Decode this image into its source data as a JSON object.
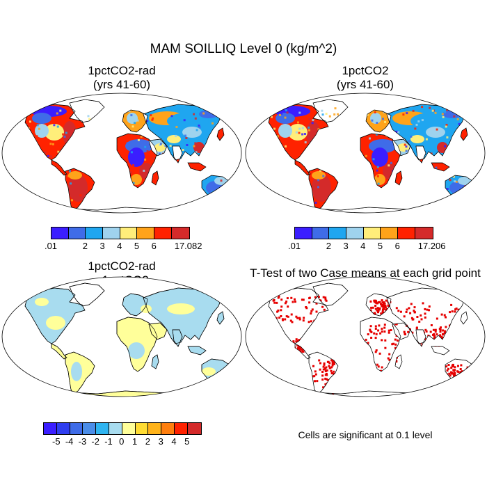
{
  "title": "MAM SOILLIQ Level 0 (kg/m^2)",
  "panels": [
    {
      "id": "a",
      "title_line1": "1pctCO2-rad",
      "title_line2": "(yrs 41-60)"
    },
    {
      "id": "b",
      "title_line1": "1pctCO2",
      "title_line2": "(yrs 41-60)"
    },
    {
      "id": "c",
      "title_line1": "1pctCO2-rad",
      "title_line2": "- 1pctCO2"
    },
    {
      "id": "d",
      "title_line1": "T-Test of two Case means at each grid point",
      "title_line2": ""
    }
  ],
  "colorbars": {
    "a": {
      "colors": [
        "#3b1eff",
        "#3f6ce8",
        "#1fa6f0",
        "#9fd3ee",
        "#ffee7a",
        "#ffa31a",
        "#ff2200",
        "#d42a2a"
      ],
      "labels": [
        ".01",
        "2",
        "3",
        "4",
        "5",
        "6",
        "17.082"
      ],
      "label_boundaries": [
        0,
        2,
        3,
        4,
        5,
        6,
        8
      ]
    },
    "b": {
      "colors": [
        "#3b1eff",
        "#3f6ce8",
        "#1fa6f0",
        "#9fd3ee",
        "#ffee7a",
        "#ffa31a",
        "#ff2200",
        "#d42a2a"
      ],
      "labels": [
        ".01",
        "2",
        "3",
        "4",
        "5",
        "6",
        "17.206"
      ],
      "label_boundaries": [
        0,
        2,
        3,
        4,
        5,
        6,
        8
      ]
    },
    "c": {
      "colors": [
        "#3b1eff",
        "#2f3ef0",
        "#3f6ce8",
        "#4b8de8",
        "#2fb4f0",
        "#a8dcef",
        "#ffff9a",
        "#ffdc33",
        "#ffb31a",
        "#ff7f0e",
        "#ff2200",
        "#d42a2a"
      ],
      "labels": [
        "-5",
        "-4",
        "-3",
        "-2",
        "-1",
        "0",
        "1",
        "2",
        "3",
        "4",
        "5"
      ],
      "label_boundaries": [
        1,
        2,
        3,
        4,
        5,
        6,
        7,
        8,
        9,
        10,
        11
      ]
    }
  },
  "map_colors": {
    "ocean": "#ffffff",
    "coast": "#000000",
    "significant": "#e60000",
    "diff_dry": "#ffff9a",
    "diff_wet": "#a8dcef"
  },
  "significance_note": "Cells are significant at 0.1 level"
}
